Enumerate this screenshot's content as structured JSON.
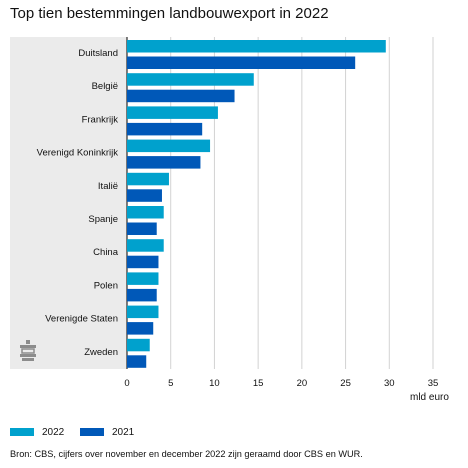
{
  "title": "Top tien bestemmingen landbouwexport in 2022",
  "source": "Bron: CBS, cijfers over november en december 2022 zijn geraamd door CBS en WUR.",
  "chart_data": {
    "type": "bar",
    "orientation": "horizontal",
    "title": "Top tien bestemmingen landbouwexport in 2022",
    "xlabel": "mld euro",
    "ylabel": "",
    "xlim": [
      0,
      35
    ],
    "xticks": [
      0,
      5,
      10,
      15,
      20,
      25,
      30,
      35
    ],
    "grid": true,
    "legend_position": "bottom-left",
    "categories": [
      "Duitsland",
      "België",
      "Frankrijk",
      "Verenigd Koninkrijk",
      "Italië",
      "Spanje",
      "China",
      "Polen",
      "Verenigde Staten",
      "Zweden"
    ],
    "series": [
      {
        "name": "2022",
        "color": "#00a1cd",
        "values": [
          29.6,
          14.5,
          10.4,
          9.5,
          4.8,
          4.2,
          4.2,
          3.6,
          3.6,
          2.6
        ]
      },
      {
        "name": "2021",
        "color": "#0058b8",
        "values": [
          26.1,
          12.3,
          8.6,
          8.4,
          4.0,
          3.4,
          3.6,
          3.4,
          3.0,
          2.2
        ]
      }
    ]
  },
  "icon": "cbs-logo-icon"
}
